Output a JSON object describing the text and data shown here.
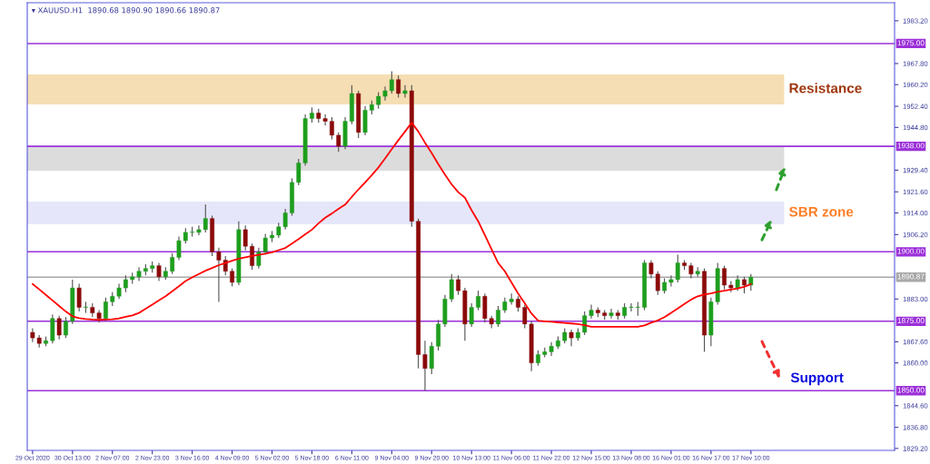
{
  "chart_data": {
    "type": "candlestick",
    "title": "▾ XAUUSD.H1  1890.68 1890.90 1890.66 1890.87",
    "categories": [
      "29 Oct 2020",
      null,
      null,
      null,
      null,
      null,
      "30 Oct 13:00",
      null,
      null,
      null,
      null,
      null,
      "2 Nov 07:00",
      null,
      null,
      null,
      null,
      null,
      "2 Nov 23:00",
      null,
      null,
      null,
      null,
      null,
      "3 Nov 16:00",
      null,
      null,
      null,
      null,
      null,
      "4 Nov 09:00",
      null,
      null,
      null,
      null,
      null,
      "5 Nov 02:00",
      null,
      null,
      null,
      null,
      null,
      "5 Nov 18:00",
      null,
      null,
      null,
      null,
      null,
      "6 Nov 11:00",
      null,
      null,
      null,
      null,
      null,
      "9 Nov 04:00",
      null,
      null,
      null,
      null,
      null,
      "9 Nov 20:00",
      null,
      null,
      null,
      null,
      null,
      "10 Nov 13:00",
      null,
      null,
      null,
      null,
      null,
      "11 Nov 06:00",
      null,
      null,
      null,
      null,
      null,
      "11 Nov 22:00",
      null,
      null,
      null,
      null,
      null,
      "12 Nov 15:00",
      null,
      null,
      null,
      null,
      null,
      "13 Nov 08:00",
      null,
      null,
      null,
      null,
      null,
      "16 Nov 01:00",
      null,
      null,
      null,
      null,
      null,
      "16 Nov 17:00",
      null,
      null,
      null,
      null,
      null,
      "17 Nov 10:00"
    ],
    "series": [
      {
        "colors": [
          "#8b0a0a",
          "#8b0a0a",
          "#1e9e1e",
          "#1e9e1e",
          "#8b0a0a",
          "#1e9e1e",
          "#1e9e1e",
          "#8b0a0a",
          "#1e9e1e",
          "#8b0a0a",
          "#8b0a0a",
          "#1e9e1e",
          "#1e9e1e",
          "#1e9e1e",
          "#1e9e1e",
          "#1e9e1e",
          "#1e9e1e",
          "#1e9e1e",
          "#1e9e1e",
          "#8b0a0a",
          "#1e9e1e",
          "#1e9e1e",
          "#1e9e1e",
          "#1e9e1e",
          "#1e9e1e",
          "#1e9e1e",
          "#1e9e1e",
          "#8b0a0a",
          "#8b0a0a",
          "#8b0a0a",
          "#8b0a0a",
          "#1e9e1e",
          "#8b0a0a",
          "#8b0a0a",
          "#1e9e1e",
          "#1e9e1e",
          "#1e9e1e",
          "#1e9e1e",
          "#1e9e1e",
          "#1e9e1e",
          "#1e9e1e",
          "#1e9e1e",
          "#1e9e1e",
          "#8b0a0a",
          "#8b0a0a",
          "#8b0a0a",
          "#8b0a0a",
          "#1e9e1e",
          "#1e9e1e",
          "#8b0a0a",
          "#1e9e1e",
          "#1e9e1e",
          "#1e9e1e",
          "#1e9e1e",
          "#1e9e1e",
          "#8b0a0a",
          "#1e9e1e",
          "#8b0a0a",
          "#8b0a0a",
          "#8b0a0a",
          "#1e9e1e",
          "#1e9e1e",
          "#1e9e1e",
          "#1e9e1e",
          "#8b0a0a",
          "#8b0a0a",
          "#1e9e1e",
          "#1e9e1e",
          "#8b0a0a",
          "#8b0a0a",
          "#1e9e1e",
          "#1e9e1e",
          "#1e9e1e",
          "#8b0a0a",
          "#8b0a0a",
          "#8b0a0a",
          "#1e9e1e",
          "#1e9e1e",
          "#1e9e1e",
          "#1e9e1e",
          "#1e9e1e",
          "#8b0a0a",
          "#1e9e1e",
          "#1e9e1e",
          "#1e9e1e",
          "#8b0a0a",
          "#8b0a0a",
          "#1e9e1e",
          "#8b0a0a",
          "#1e9e1e",
          "#1e9e1e",
          "#1e9e1e",
          "#1e9e1e",
          "#8b0a0a",
          "#8b0a0a",
          "#1e9e1e",
          "#1e9e1e",
          "#1e9e1e",
          "#8b0a0a",
          "#8b0a0a",
          "#1e9e1e",
          "#8b0a0a",
          "#1e9e1e",
          "#1e9e1e",
          "#8b0a0a",
          "#8b0a0a",
          "#1e9e1e",
          "#8b0a0a",
          "#1e9e1e"
        ],
        "ohlc": [
          [
            1871,
            1872.5,
            1867.5,
            1869
          ],
          [
            1869,
            1870,
            1865.5,
            1867
          ],
          [
            1867,
            1869.5,
            1866,
            1868
          ],
          [
            1868,
            1877.5,
            1867,
            1876
          ],
          [
            1876,
            1877,
            1868.5,
            1870
          ],
          [
            1870,
            1876.5,
            1869,
            1875
          ],
          [
            1875,
            1890,
            1874,
            1887
          ],
          [
            1887,
            1888.5,
            1878.5,
            1880
          ],
          [
            1880,
            1882,
            1878,
            1880
          ],
          [
            1880,
            1881.5,
            1876.5,
            1878
          ],
          [
            1878,
            1879,
            1874.5,
            1876
          ],
          [
            1876,
            1883.5,
            1875,
            1882
          ],
          [
            1882,
            1885.5,
            1880.5,
            1884
          ],
          [
            1884,
            1888.5,
            1883,
            1887
          ],
          [
            1887,
            1891.5,
            1885.5,
            1890
          ],
          [
            1890,
            1892.5,
            1888.5,
            1891
          ],
          [
            1891,
            1894.5,
            1889.5,
            1893
          ],
          [
            1893,
            1895.5,
            1891.5,
            1894
          ],
          [
            1894,
            1896.5,
            1892.5,
            1895
          ],
          [
            1895,
            1896,
            1889.5,
            1891
          ],
          [
            1891,
            1894.5,
            1890,
            1893
          ],
          [
            1893,
            1899.5,
            1892,
            1898
          ],
          [
            1898,
            1905.5,
            1897,
            1904
          ],
          [
            1904,
            1908.5,
            1903,
            1907
          ],
          [
            1907,
            1909,
            1905.5,
            1907
          ],
          [
            1907,
            1909.5,
            1906,
            1908
          ],
          [
            1908,
            1917,
            1907,
            1912
          ],
          [
            1912,
            1913,
            1898.5,
            1900
          ],
          [
            1900,
            1901.5,
            1882,
            1897
          ],
          [
            1897,
            1898.5,
            1891.5,
            1893
          ],
          [
            1893,
            1894,
            1887.5,
            1889
          ],
          [
            1889,
            1911,
            1888,
            1908
          ],
          [
            1908,
            1909.5,
            1900.5,
            1902
          ],
          [
            1902,
            1903,
            1893.5,
            1895
          ],
          [
            1895,
            1901.5,
            1894,
            1900
          ],
          [
            1900,
            1906.5,
            1899,
            1905
          ],
          [
            1905,
            1907.5,
            1903.5,
            1906
          ],
          [
            1906,
            1910.5,
            1905,
            1909
          ],
          [
            1909,
            1915.5,
            1908,
            1914
          ],
          [
            1914,
            1926.5,
            1913,
            1925
          ],
          [
            1925,
            1933.5,
            1924,
            1932
          ],
          [
            1932,
            1949.5,
            1931,
            1948
          ],
          [
            1948,
            1952,
            1946.5,
            1950
          ],
          [
            1950,
            1951.5,
            1946.5,
            1948
          ],
          [
            1948,
            1949.5,
            1945.5,
            1947
          ],
          [
            1947,
            1948.5,
            1940.5,
            1942
          ],
          [
            1942,
            1943,
            1936,
            1938
          ],
          [
            1938,
            1948.5,
            1937,
            1947
          ],
          [
            1947,
            1960,
            1946,
            1957
          ],
          [
            1957,
            1958,
            1941,
            1943
          ],
          [
            1943,
            1952.5,
            1942,
            1951
          ],
          [
            1951,
            1954.5,
            1949.5,
            1953
          ],
          [
            1953,
            1957.5,
            1951.5,
            1956
          ],
          [
            1956,
            1959.5,
            1954.5,
            1958
          ],
          [
            1958,
            1965,
            1957,
            1962
          ],
          [
            1962,
            1963.5,
            1955.5,
            1957
          ],
          [
            1957,
            1960,
            1955.5,
            1958
          ],
          [
            1958,
            1960,
            1909,
            1911
          ],
          [
            1911,
            1912,
            1858,
            1863
          ],
          [
            1863,
            1868,
            1850,
            1858
          ],
          [
            1858,
            1867.5,
            1856,
            1866
          ],
          [
            1866,
            1875.5,
            1864.5,
            1874
          ],
          [
            1874,
            1884.5,
            1873,
            1883
          ],
          [
            1883,
            1892,
            1882,
            1890
          ],
          [
            1890,
            1891.5,
            1884.5,
            1886
          ],
          [
            1886,
            1887,
            1868,
            1874
          ],
          [
            1874,
            1881.5,
            1873,
            1880
          ],
          [
            1880,
            1886,
            1879,
            1884
          ],
          [
            1884,
            1885,
            1874.5,
            1876
          ],
          [
            1876,
            1877,
            1872.5,
            1874
          ],
          [
            1874,
            1880.5,
            1873,
            1879
          ],
          [
            1879,
            1883.5,
            1878,
            1882
          ],
          [
            1882,
            1885,
            1881,
            1883
          ],
          [
            1883,
            1884,
            1878.5,
            1880
          ],
          [
            1880,
            1881,
            1872.5,
            1874
          ],
          [
            1874,
            1875,
            1857,
            1860
          ],
          [
            1860,
            1864.5,
            1859,
            1863
          ],
          [
            1863,
            1865.5,
            1862,
            1864
          ],
          [
            1864,
            1867.5,
            1862.5,
            1866
          ],
          [
            1866,
            1869.5,
            1865,
            1868
          ],
          [
            1868,
            1872.5,
            1867,
            1871
          ],
          [
            1871,
            1872,
            1866,
            1869
          ],
          [
            1869,
            1872.5,
            1868,
            1871
          ],
          [
            1871,
            1878.5,
            1870,
            1877
          ],
          [
            1877,
            1881,
            1876,
            1879
          ],
          [
            1879,
            1880,
            1876.5,
            1878
          ],
          [
            1878,
            1879,
            1875.5,
            1877
          ],
          [
            1877,
            1879.5,
            1876,
            1878
          ],
          [
            1878,
            1879,
            1875.5,
            1877
          ],
          [
            1877,
            1881.5,
            1876,
            1880
          ],
          [
            1880,
            1881.5,
            1878.5,
            1880
          ],
          [
            1880,
            1882,
            1877,
            1880
          ],
          [
            1880,
            1897,
            1879,
            1896
          ],
          [
            1896,
            1897,
            1890.5,
            1892
          ],
          [
            1892,
            1893,
            1884.5,
            1886
          ],
          [
            1886,
            1890.5,
            1885,
            1889
          ],
          [
            1889,
            1891.5,
            1887.5,
            1890
          ],
          [
            1890,
            1899,
            1889,
            1896
          ],
          [
            1896,
            1897,
            1893.5,
            1895
          ],
          [
            1895,
            1896,
            1890.5,
            1892
          ],
          [
            1892,
            1894.5,
            1891,
            1893
          ],
          [
            1893,
            1894,
            1864,
            1870
          ],
          [
            1870,
            1883.5,
            1866,
            1882
          ],
          [
            1882,
            1896,
            1881,
            1894
          ],
          [
            1894,
            1895,
            1886.5,
            1888
          ],
          [
            1888,
            1889.5,
            1885.5,
            1887
          ],
          [
            1887,
            1891.5,
            1886,
            1890
          ],
          [
            1890,
            1891,
            1885,
            1888
          ],
          [
            1888,
            1892,
            1886,
            1890.87
          ]
        ]
      },
      {
        "type": "line",
        "color": "#ff0000",
        "values": [
          1888.4,
          1886.5,
          1884.5,
          1882.5,
          1880.5,
          1878.5,
          1876.8,
          1876.1,
          1875.8,
          1875.6,
          1875.5,
          1875.6,
          1875.7,
          1876,
          1876.6,
          1877.1,
          1878,
          1879.5,
          1881,
          1882.5,
          1884,
          1885.8,
          1887.6,
          1889.5,
          1890.8,
          1892,
          1893.2,
          1894.2,
          1895.2,
          1896,
          1896.8,
          1897.5,
          1898,
          1898.5,
          1898.9,
          1899.3,
          1899.8,
          1900.6,
          1901.4,
          1903,
          1904.6,
          1906.3,
          1908,
          1910.3,
          1912.3,
          1913.8,
          1915.5,
          1917,
          1919.8,
          1922.5,
          1925,
          1927.6,
          1930.4,
          1933.6,
          1937,
          1940.2,
          1943.3,
          1946.5,
          1943.3,
          1939.3,
          1935.6,
          1931.6,
          1927.8,
          1924.3,
          1921.5,
          1919.5,
          1915,
          1911,
          1906,
          1901,
          1896,
          1893,
          1889,
          1885,
          1881.5,
          1877.8,
          1875.2,
          1875,
          1874.8,
          1874.6,
          1874.4,
          1874.2,
          1874,
          1873.6,
          1873,
          1873,
          1873,
          1873,
          1873,
          1873,
          1873,
          1873,
          1873.5,
          1874.5,
          1875.3,
          1876.5,
          1878,
          1879.6,
          1881.2,
          1882.8,
          1884,
          1884.6,
          1885,
          1885.6,
          1886,
          1886.4,
          1886.8,
          1887.4,
          1888.4
        ]
      }
    ],
    "ylim": [
      1828.5,
      1989.7
    ],
    "yticks": [
      {
        "value": 1983.2,
        "label": "1983.20"
      },
      {
        "value": 1967.8,
        "label": "1967.80"
      },
      {
        "value": 1960.2,
        "label": "1960.20"
      },
      {
        "value": 1952.4,
        "label": "1952.40"
      },
      {
        "value": 1944.8,
        "label": "1944.80"
      },
      {
        "value": 1929.4,
        "label": "1929.40"
      },
      {
        "value": 1921.6,
        "label": "1921.60"
      },
      {
        "value": 1914,
        "label": "1914.00"
      },
      {
        "value": 1906.2,
        "label": "1906.20"
      },
      {
        "value": 1883,
        "label": "1883.00"
      },
      {
        "value": 1867.6,
        "label": "1867.60"
      },
      {
        "value": 1860,
        "label": "1860.00"
      },
      {
        "value": 1844.6,
        "label": "1844.60"
      },
      {
        "value": 1836.8,
        "label": "1836.80"
      },
      {
        "value": 1829.2,
        "label": "1829.20"
      }
    ],
    "ref_lines": [
      {
        "axis": "y",
        "value": 1975,
        "label": "1975.00",
        "color": "#9b30d9"
      },
      {
        "axis": "y",
        "value": 1938,
        "label": "1938.00",
        "color": "#9b30d9"
      },
      {
        "axis": "y",
        "value": 1900,
        "label": "1900.00",
        "color": "#9b30d9"
      },
      {
        "axis": "y",
        "value": 1890.87,
        "label": "1890.87",
        "color": "#a8a8a8"
      },
      {
        "axis": "y",
        "value": 1875,
        "label": "1875.00",
        "color": "#9b30d9"
      },
      {
        "axis": "y",
        "value": 1850,
        "label": "1850.00",
        "color": "#9b30d9"
      }
    ],
    "bands": [
      {
        "axis": "y",
        "from": 1953.1,
        "to": 1963.9,
        "label": "Resistance",
        "color": "#f5deb3"
      },
      {
        "axis": "y",
        "from": 1929.2,
        "to": 1938,
        "color": "#dcdcdc"
      },
      {
        "axis": "y",
        "from": 1909.9,
        "to": 1918.1,
        "label": "SBR zone",
        "color": "#e6e6fa"
      }
    ],
    "annotations": [
      "Support"
    ],
    "grid": false,
    "legend": false
  }
}
